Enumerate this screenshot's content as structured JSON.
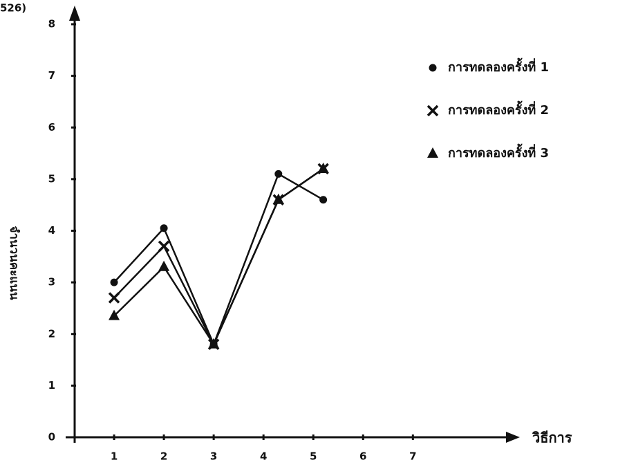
{
  "chart_data": {
    "type": "line",
    "annotation": "526)",
    "x_label": "วิธีการ",
    "y_label": "จำนวนคะแนน",
    "xlim": [
      0,
      8.8
    ],
    "xticks": [
      1,
      2,
      3,
      4,
      5,
      6,
      7
    ],
    "ylim": [
      0,
      8
    ],
    "yticks": [
      0,
      1,
      2,
      3,
      4,
      5,
      6,
      7,
      8
    ],
    "x": [
      1,
      2,
      3,
      4.3,
      5.2
    ],
    "series": [
      {
        "name": "การทดลองครั้งที่ 1",
        "color": "#111111",
        "marker": "circle",
        "values": [
          3.0,
          4.05,
          1.8,
          5.1,
          4.6
        ]
      },
      {
        "name": "การทดลองครั้งที่ 2",
        "color": "#111111",
        "marker": "cross",
        "values": [
          2.7,
          3.7,
          1.8,
          4.6,
          5.2
        ]
      },
      {
        "name": "การทดลองครั้งที่ 3",
        "color": "#111111",
        "marker": "triangle",
        "values": [
          2.35,
          3.3,
          1.8,
          4.6,
          5.2
        ]
      }
    ]
  }
}
